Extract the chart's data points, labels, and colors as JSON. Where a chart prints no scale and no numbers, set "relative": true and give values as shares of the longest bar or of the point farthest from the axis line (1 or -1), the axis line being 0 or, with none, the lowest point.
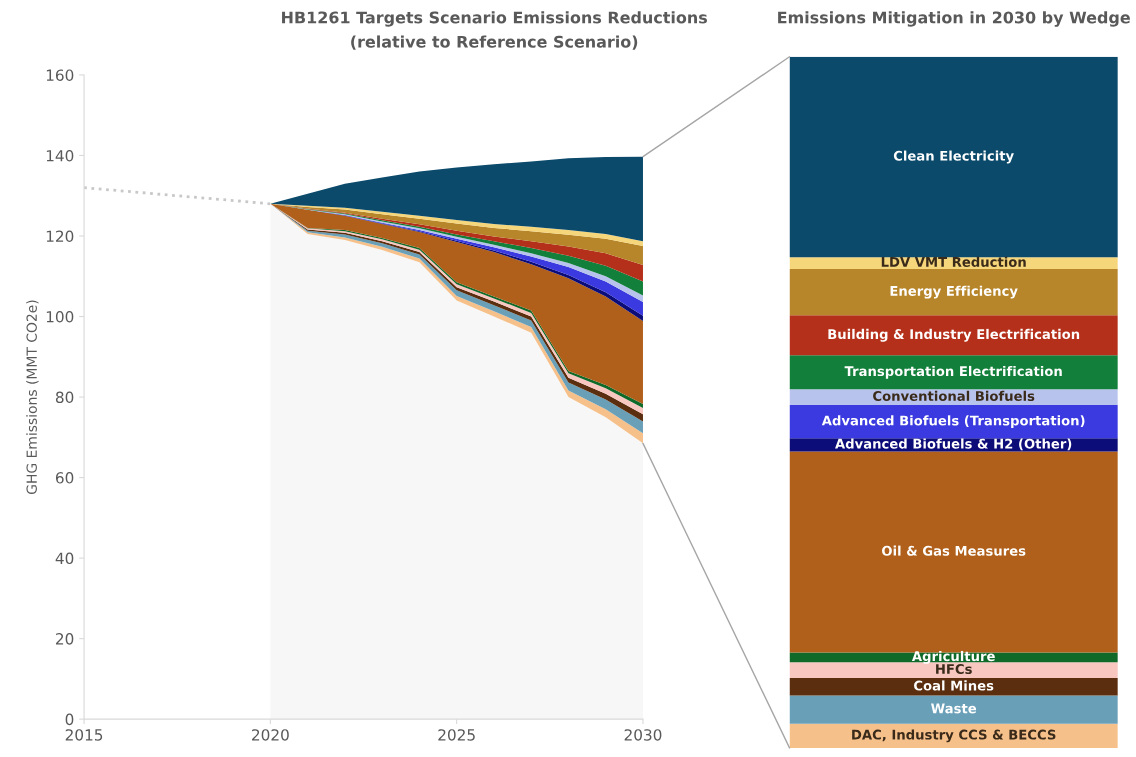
{
  "chart_data": [
    {
      "type": "area",
      "title": "HB1261 Targets Scenario Emissions Reductions",
      "subtitle": "(relative to Reference Scenario)",
      "ylabel": "GHG Emissions (MMT CO2e)",
      "stacked": true,
      "x": [
        2020,
        2021,
        2022,
        2023,
        2024,
        2025,
        2026,
        2027,
        2028,
        2029,
        2030
      ],
      "series": [
        {
          "color": "#f7f7f7",
          "values": [
            128,
            120.5,
            119,
            116.5,
            113.5,
            104,
            100,
            96,
            80,
            75,
            68.5
          ]
        },
        {
          "color": "#f6c08a",
          "values": [
            0,
            0.4,
            0.6,
            0.8,
            0.9,
            1.1,
            1.3,
            1.4,
            1.6,
            2.0,
            2.5
          ]
        },
        {
          "color": "#6a9fb8",
          "values": [
            0,
            0.4,
            0.8,
            0.9,
            1.0,
            1.4,
            1.5,
            1.6,
            2.0,
            2.4,
            2.9
          ]
        },
        {
          "color": "#5a2e0e",
          "values": [
            0,
            0.3,
            0.4,
            0.5,
            0.6,
            0.8,
            0.9,
            1.0,
            1.2,
            1.4,
            1.8
          ]
        },
        {
          "color": "#f7c7c0",
          "values": [
            0,
            0.3,
            0.4,
            0.5,
            0.6,
            0.7,
            0.8,
            0.9,
            1.1,
            1.4,
            1.6
          ]
        },
        {
          "color": "#0f6a2a",
          "values": [
            0,
            0.1,
            0.3,
            0.3,
            0.4,
            0.5,
            0.5,
            0.6,
            0.6,
            0.8,
            1.0
          ]
        },
        {
          "color": "#b0601a",
          "values": [
            0,
            4.5,
            3.5,
            3.5,
            4.0,
            10.0,
            11.0,
            11.5,
            23.0,
            22.0,
            20.6
          ]
        },
        {
          "color": "#0d0d7a",
          "values": [
            0,
            0,
            0.1,
            0.1,
            0.2,
            0.3,
            0.4,
            0.6,
            0.8,
            1.0,
            1.3
          ]
        },
        {
          "color": "#3a3ae0",
          "values": [
            0,
            0,
            0.1,
            0.2,
            0.3,
            0.5,
            0.8,
            1.3,
            2.0,
            2.7,
            3.4
          ]
        },
        {
          "color": "#b7c3ec",
          "values": [
            0,
            0.1,
            0.2,
            0.3,
            0.4,
            0.5,
            0.6,
            0.8,
            1.0,
            1.3,
            1.6
          ]
        },
        {
          "color": "#12803a",
          "values": [
            0,
            0.1,
            0.2,
            0.3,
            0.4,
            0.6,
            0.9,
            1.3,
            1.8,
            2.6,
            3.5
          ]
        },
        {
          "color": "#b5301a",
          "values": [
            0,
            0.1,
            0.2,
            0.4,
            0.6,
            0.9,
            1.2,
            1.7,
            2.3,
            3.1,
            4.1
          ]
        },
        {
          "color": "#b8862a",
          "values": [
            0,
            0.4,
            0.8,
            1.1,
            1.4,
            1.8,
            2.1,
            2.5,
            2.9,
            3.6,
            4.7
          ]
        },
        {
          "color": "#f5d67a",
          "values": [
            0,
            0.3,
            0.4,
            0.6,
            0.7,
            0.9,
            1.0,
            1.1,
            1.2,
            1.2,
            1.2
          ]
        },
        {
          "color": "#0b4a6b",
          "values": [
            0,
            3.0,
            6.0,
            8.5,
            11.0,
            13.0,
            14.8,
            16.2,
            17.8,
            19.1,
            21.0
          ]
        },
        {
          "type": "line",
          "color": "#c8c8c8",
          "line_style": "dotted",
          "x": [
            2015,
            2020
          ],
          "values": [
            132,
            128
          ]
        }
      ],
      "xlim": [
        2015,
        2030
      ],
      "ylim": [
        0,
        160
      ],
      "xticks": [
        2015,
        2020,
        2025,
        2030
      ],
      "yticks": [
        0,
        20,
        40,
        60,
        80,
        100,
        120,
        140,
        160
      ]
    },
    {
      "type": "bar",
      "title": "Emissions Mitigation in 2030 by Wedge",
      "stacked": true,
      "relative": true,
      "categories": [
        null
      ],
      "series": [
        {
          "name": "DAC, Industry CCS & BECCS",
          "color": "#f6c08a",
          "values": [
            0.035
          ]
        },
        {
          "name": "Waste",
          "color": "#6a9fb8",
          "values": [
            0.041
          ]
        },
        {
          "name": "Coal Mines",
          "color": "#5a2e0e",
          "values": [
            0.025
          ]
        },
        {
          "name": "HFCs",
          "color": "#f7c7c0",
          "values": [
            0.023
          ]
        },
        {
          "name": "Agriculture",
          "color": "#0f6a2a",
          "values": [
            0.014
          ]
        },
        {
          "name": "Oil & Gas Measures",
          "color": "#b0601a",
          "values": [
            0.291
          ]
        },
        {
          "name": "Advanced Biofuels & H2 (Other)",
          "color": "#0d0d7a",
          "values": [
            0.019
          ]
        },
        {
          "name": "Advanced Biofuels (Transportation)",
          "color": "#3a3ae0",
          "values": [
            0.048
          ]
        },
        {
          "name": "Conventional Biofuels",
          "color": "#b7c3ec",
          "values": [
            0.023
          ]
        },
        {
          "name": "Transportation Electrification",
          "color": "#12803a",
          "values": [
            0.049
          ]
        },
        {
          "name": "Building & Industry Electrification",
          "color": "#b5301a",
          "values": [
            0.058
          ]
        },
        {
          "name": "Energy Efficiency",
          "color": "#b8862a",
          "values": [
            0.067
          ]
        },
        {
          "name": "LDV VMT Reduction",
          "color": "#f5d67a",
          "values": [
            0.017
          ]
        },
        {
          "name": "Clean Electricity",
          "color": "#0b4a6b",
          "values": [
            0.29
          ]
        }
      ]
    }
  ]
}
